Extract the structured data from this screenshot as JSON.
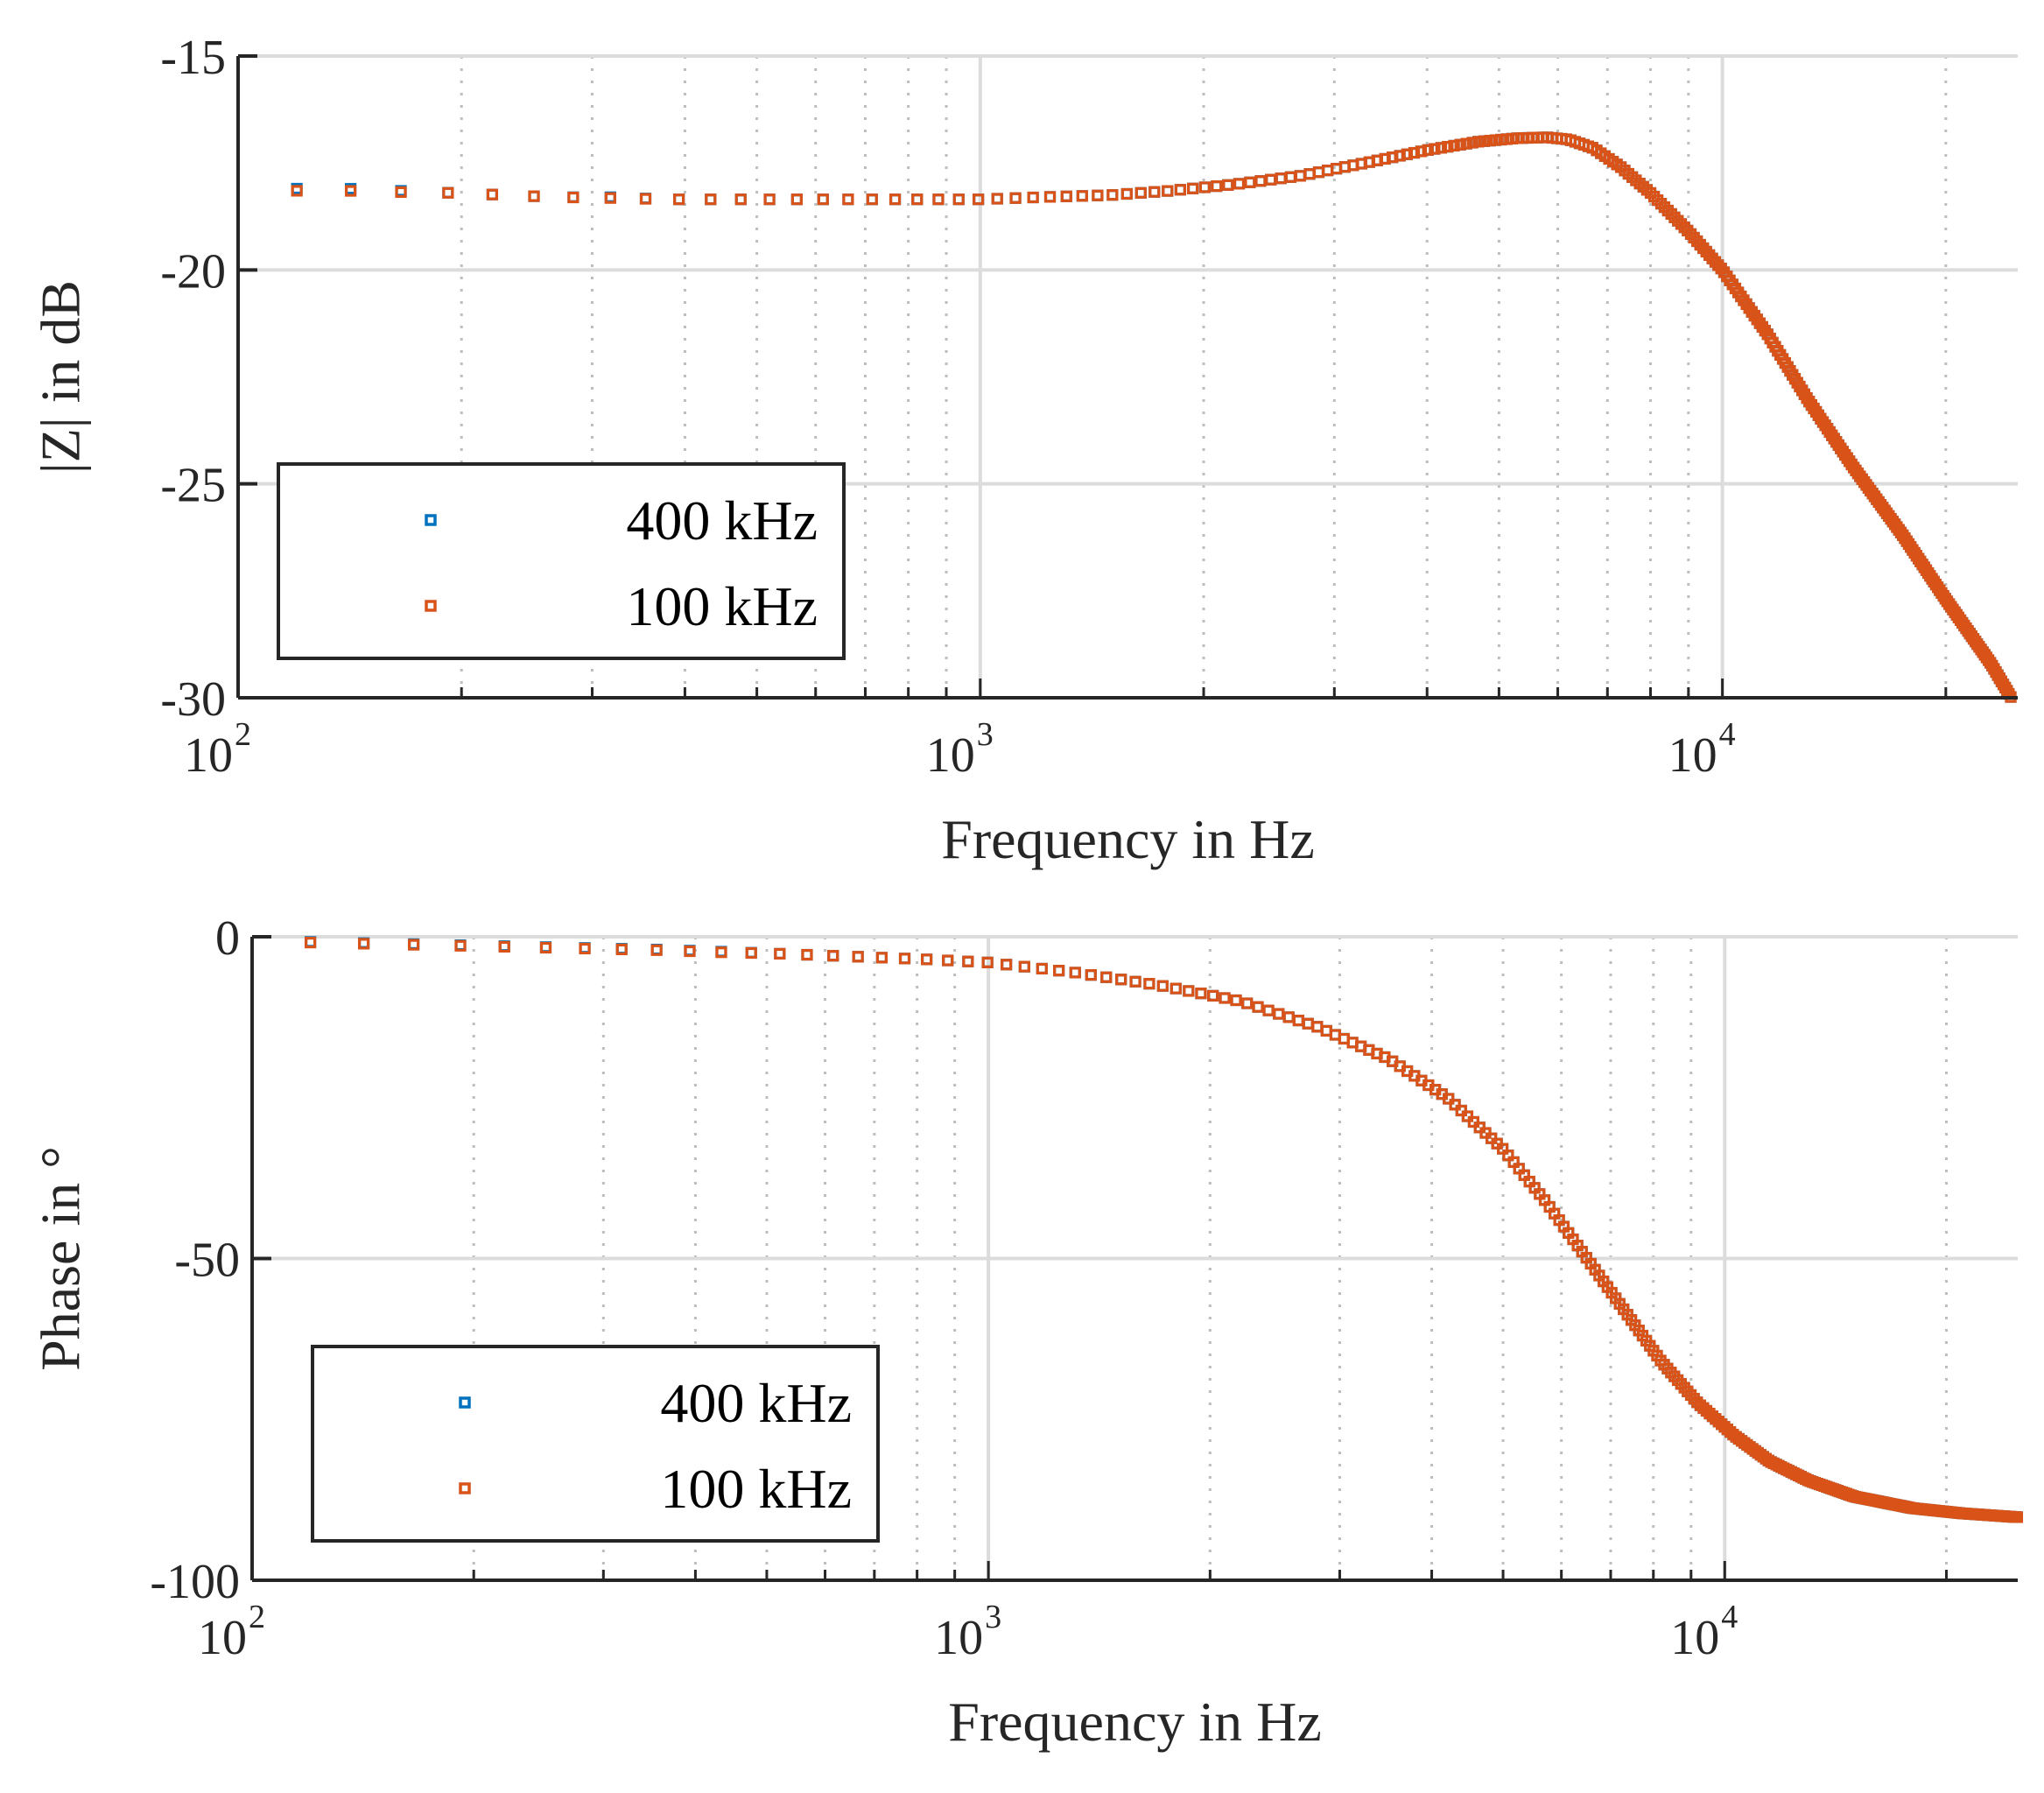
{
  "chart_data": [
    {
      "type": "scatter",
      "title": "",
      "xlabel": "Frequency in Hz",
      "ylabel": "|Z| in dB",
      "xscale": "log",
      "xlim": [
        100,
        25000
      ],
      "ylim": [
        -30,
        -15
      ],
      "yticks": [
        -15,
        -20,
        -25,
        -30
      ],
      "xticks": [
        100,
        1000,
        10000
      ],
      "xtick_labels": [
        {
          "base": "10",
          "exp": "2"
        },
        {
          "base": "10",
          "exp": "3"
        },
        {
          "base": "10",
          "exp": "4"
        }
      ],
      "grid": true,
      "legend_position": "lower-left",
      "series": [
        {
          "name": "400 kHz",
          "color": "#0072BD",
          "x": [
            120,
            140,
            165,
            195,
            230,
            270,
            320,
            380,
            450,
            530,
            620,
            730,
            860,
            1000,
            1200,
            1500,
            1800,
            2200,
            2700,
            3300,
            4000,
            4700,
            5300,
            5800,
            6200,
            6700,
            7300,
            8000,
            9000,
            10000,
            11500,
            13000,
            15000,
            17500,
            20000,
            23000,
            24500
          ],
          "y": [
            -18.1,
            -18.1,
            -18.15,
            -18.2,
            -18.25,
            -18.3,
            -18.3,
            -18.35,
            -18.35,
            -18.35,
            -18.35,
            -18.35,
            -18.35,
            -18.35,
            -18.3,
            -18.25,
            -18.15,
            -18.0,
            -17.8,
            -17.5,
            -17.2,
            -17.0,
            -16.92,
            -16.9,
            -16.95,
            -17.15,
            -17.6,
            -18.2,
            -19.1,
            -20.0,
            -21.5,
            -23.0,
            -24.6,
            -26.2,
            -27.7,
            -29.2,
            -30.0
          ]
        },
        {
          "name": "100 kHz",
          "color": "#D95319",
          "x": [
            120,
            140,
            165,
            195,
            230,
            270,
            320,
            380,
            450,
            530,
            620,
            730,
            860,
            1000,
            1200,
            1500,
            1800,
            2200,
            2700,
            3300,
            4000,
            4700,
            5300,
            5800,
            6200,
            6700,
            7300,
            8000,
            9000,
            10000,
            11500,
            13000,
            15000,
            17500,
            20000,
            23000,
            24500
          ],
          "y": [
            -18.15,
            -18.15,
            -18.18,
            -18.2,
            -18.25,
            -18.3,
            -18.32,
            -18.35,
            -18.35,
            -18.35,
            -18.35,
            -18.35,
            -18.35,
            -18.35,
            -18.3,
            -18.25,
            -18.15,
            -18.0,
            -17.8,
            -17.5,
            -17.2,
            -17.0,
            -16.92,
            -16.9,
            -16.95,
            -17.15,
            -17.6,
            -18.2,
            -19.1,
            -20.0,
            -21.5,
            -23.0,
            -24.6,
            -26.2,
            -27.7,
            -29.2,
            -30.0
          ]
        }
      ]
    },
    {
      "type": "scatter",
      "title": "",
      "xlabel": "Frequency in Hz",
      "ylabel": "Phase in °",
      "xscale": "log",
      "xlim": [
        100,
        25000
      ],
      "ylim": [
        -100,
        0
      ],
      "yticks": [
        0,
        -50,
        -100
      ],
      "xticks": [
        100,
        1000,
        10000
      ],
      "xtick_labels": [
        {
          "base": "10",
          "exp": "2"
        },
        {
          "base": "10",
          "exp": "3"
        },
        {
          "base": "10",
          "exp": "4"
        }
      ],
      "grid": true,
      "legend_position": "lower-left",
      "series": [
        {
          "name": "400 kHz",
          "color": "#0072BD",
          "x": [
            120,
            145,
            175,
            210,
            250,
            300,
            360,
            430,
            510,
            600,
            700,
            820,
            1000,
            1300,
            1700,
            2200,
            2800,
            3500,
            4200,
            5000,
            5700,
            6500,
            7300,
            8200,
            9200,
            10300,
            11500,
            13000,
            15000,
            18000,
            21000,
            25000
          ],
          "y": [
            -0.8,
            -1.0,
            -1.2,
            -1.4,
            -1.6,
            -1.8,
            -2.0,
            -2.3,
            -2.6,
            -2.9,
            -3.2,
            -3.5,
            -4.0,
            -5.5,
            -7.5,
            -10.0,
            -14.0,
            -19.0,
            -25.0,
            -33.0,
            -41.0,
            -50.0,
            -58.0,
            -66.0,
            -72.5,
            -77.5,
            -81.5,
            -84.5,
            -87.0,
            -88.8,
            -89.6,
            -90.2
          ]
        },
        {
          "name": "100 kHz",
          "color": "#D95319",
          "x": [
            120,
            145,
            175,
            210,
            250,
            300,
            360,
            430,
            510,
            600,
            700,
            820,
            1000,
            1300,
            1700,
            2200,
            2800,
            3500,
            4200,
            5000,
            5700,
            6500,
            7300,
            8200,
            9200,
            10300,
            11500,
            13000,
            15000,
            18000,
            21000,
            25000
          ],
          "y": [
            -0.9,
            -1.1,
            -1.3,
            -1.5,
            -1.7,
            -1.9,
            -2.1,
            -2.4,
            -2.6,
            -2.9,
            -3.2,
            -3.5,
            -4.0,
            -5.5,
            -7.5,
            -10.0,
            -14.0,
            -19.0,
            -25.0,
            -33.0,
            -41.0,
            -50.0,
            -58.0,
            -66.0,
            -72.5,
            -77.5,
            -81.5,
            -84.5,
            -87.0,
            -88.8,
            -89.6,
            -90.2
          ]
        }
      ]
    }
  ]
}
